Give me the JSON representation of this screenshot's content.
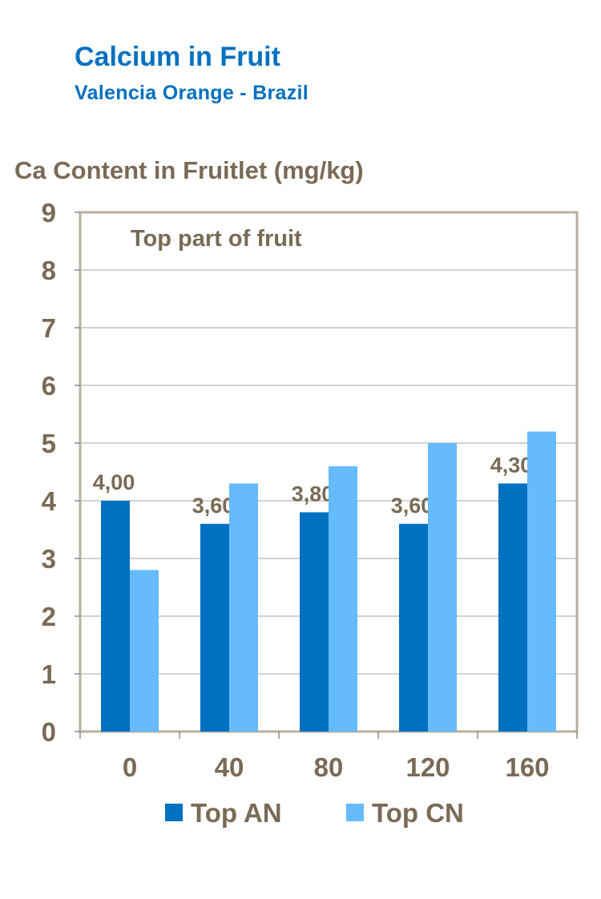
{
  "chart_data": {
    "type": "bar",
    "title": "Calcium in Fruit",
    "subtitle": "Valencia Orange - Brazil",
    "ylabel": "Ca Content in Fruitlet (mg/kg)",
    "annotation": "Top part of fruit",
    "categories": [
      "0",
      "40",
      "80",
      "120",
      "160"
    ],
    "ylim": [
      0,
      9
    ],
    "yticks": [
      "0",
      "1",
      "2",
      "3",
      "4",
      "5",
      "6",
      "7",
      "8",
      "9"
    ],
    "grid": true,
    "legend_position": "bottom",
    "series": [
      {
        "name": "Top AN",
        "color": "#0070C0",
        "values": [
          4.0,
          3.6,
          3.8,
          3.6,
          4.3
        ],
        "labels": [
          "4,00",
          "3,60",
          "3,80",
          "3,60",
          "4,30"
        ]
      },
      {
        "name": "Top CN",
        "color": "#66BBFF",
        "values": [
          2.8,
          4.3,
          4.6,
          5.0,
          5.2
        ]
      }
    ]
  }
}
